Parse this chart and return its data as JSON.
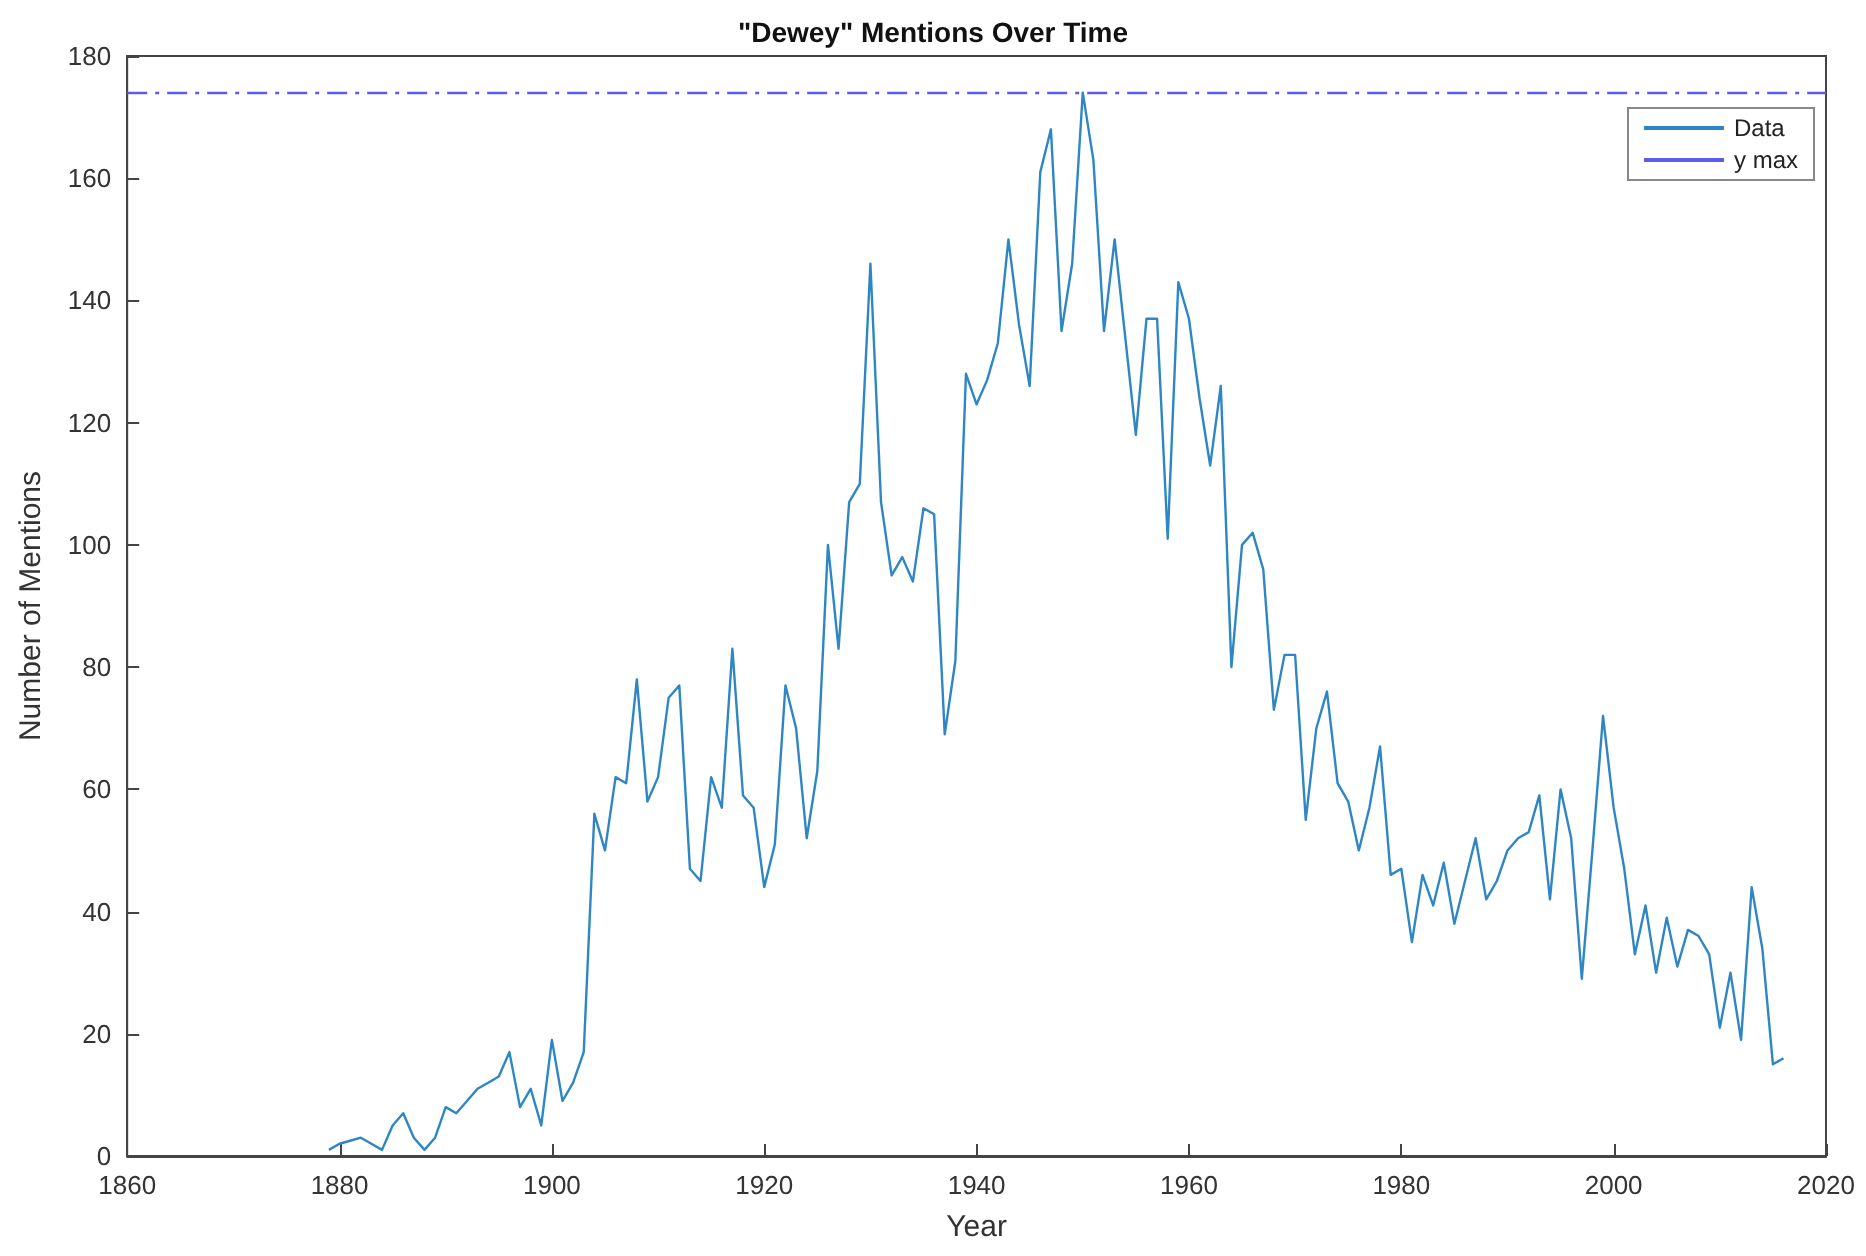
{
  "chart_data": {
    "type": "line",
    "title": "\"Dewey\" Mentions Over Time",
    "xlabel": "Year",
    "ylabel": "Number of Mentions",
    "xlim": [
      1860,
      2020
    ],
    "xticks": [
      1860,
      1880,
      1900,
      1920,
      1940,
      1960,
      1980,
      2000,
      2020
    ],
    "ylim": [
      0,
      180
    ],
    "yticks": [
      0,
      20,
      40,
      60,
      80,
      100,
      120,
      140,
      160,
      180
    ],
    "grid": false,
    "legend": "top right",
    "line_style": "solid",
    "marker": "none",
    "series": [
      {
        "name": "Data",
        "color": "#2f86c4",
        "x": [
          1879,
          1880,
          1881,
          1882,
          1883,
          1884,
          1885,
          1886,
          1887,
          1888,
          1889,
          1890,
          1891,
          1892,
          1893,
          1894,
          1895,
          1896,
          1897,
          1898,
          1899,
          1900,
          1901,
          1902,
          1903,
          1904,
          1905,
          1906,
          1907,
          1908,
          1909,
          1910,
          1911,
          1912,
          1913,
          1914,
          1915,
          1916,
          1917,
          1918,
          1919,
          1920,
          1921,
          1922,
          1923,
          1924,
          1925,
          1926,
          1927,
          1928,
          1929,
          1930,
          1931,
          1932,
          1933,
          1934,
          1935,
          1936,
          1937,
          1938,
          1939,
          1940,
          1941,
          1942,
          1943,
          1944,
          1945,
          1946,
          1947,
          1948,
          1949,
          1950,
          1951,
          1952,
          1953,
          1954,
          1955,
          1956,
          1957,
          1958,
          1959,
          1960,
          1961,
          1962,
          1963,
          1964,
          1965,
          1966,
          1967,
          1968,
          1969,
          1970,
          1971,
          1972,
          1973,
          1974,
          1975,
          1976,
          1977,
          1978,
          1979,
          1980,
          1981,
          1982,
          1983,
          1984,
          1985,
          1986,
          1987,
          1988,
          1989,
          1990,
          1991,
          1992,
          1993,
          1994,
          1995,
          1996,
          1997,
          1998,
          1999,
          2000,
          2001,
          2002,
          2003,
          2004,
          2005,
          2006,
          2007,
          2008,
          2009,
          2010,
          2011,
          2012,
          2013,
          2014,
          2015,
          2016
        ],
        "values": [
          1,
          2,
          2.5,
          3,
          2,
          1,
          5,
          7,
          3,
          1,
          3,
          8,
          7,
          9,
          11,
          12,
          13,
          17,
          8,
          11,
          5,
          19,
          9,
          12,
          17,
          56,
          50,
          62,
          61,
          78,
          58,
          62,
          75,
          77,
          47,
          45,
          62,
          57,
          83,
          59,
          57,
          44,
          51,
          77,
          70,
          52,
          63,
          100,
          83,
          107,
          110,
          146,
          107,
          95,
          98,
          94,
          106,
          105,
          69,
          81,
          128,
          123,
          127,
          133,
          150,
          136,
          126,
          161,
          168,
          135,
          146,
          174,
          163,
          135,
          150,
          134,
          118,
          137,
          137,
          101,
          143,
          137,
          124,
          113,
          126,
          80,
          100,
          102,
          96,
          73,
          82,
          82,
          55,
          70,
          76,
          61,
          58,
          50,
          57,
          67,
          46,
          47,
          35,
          46,
          41,
          48,
          38,
          45,
          52,
          42,
          45,
          50,
          52,
          53,
          59,
          42,
          60,
          52,
          29,
          50,
          72,
          57,
          47,
          33,
          41,
          30,
          39,
          31,
          37,
          36,
          33,
          21,
          30,
          19,
          44,
          34,
          15,
          16
        ]
      }
    ],
    "ref_lines": [
      {
        "axis": "y",
        "value": 174,
        "label": "y max",
        "color": "#5b5bf0",
        "line_style": "dashed"
      }
    ]
  }
}
